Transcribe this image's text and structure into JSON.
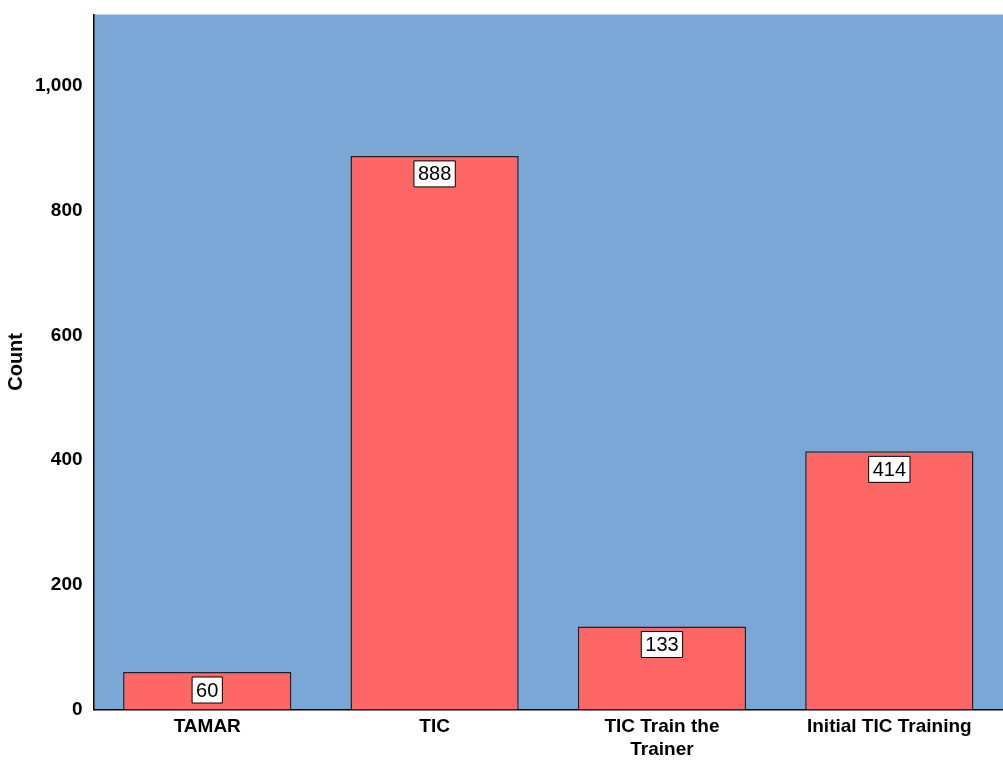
{
  "chart_data": {
    "type": "bar",
    "ylabel": "Count",
    "categories": [
      "TAMAR",
      "TIC",
      "TIC Train the Trainer",
      "Initial TIC Training"
    ],
    "values": [
      60,
      888,
      133,
      414
    ],
    "color": "#ff6666",
    "ylim": [
      0,
      1115
    ],
    "yticks": [
      0,
      200,
      400,
      600,
      800,
      {
        "value": 1000,
        "label": "1,000"
      }
    ],
    "grid": false,
    "legend": false,
    "data_labels": true
  }
}
